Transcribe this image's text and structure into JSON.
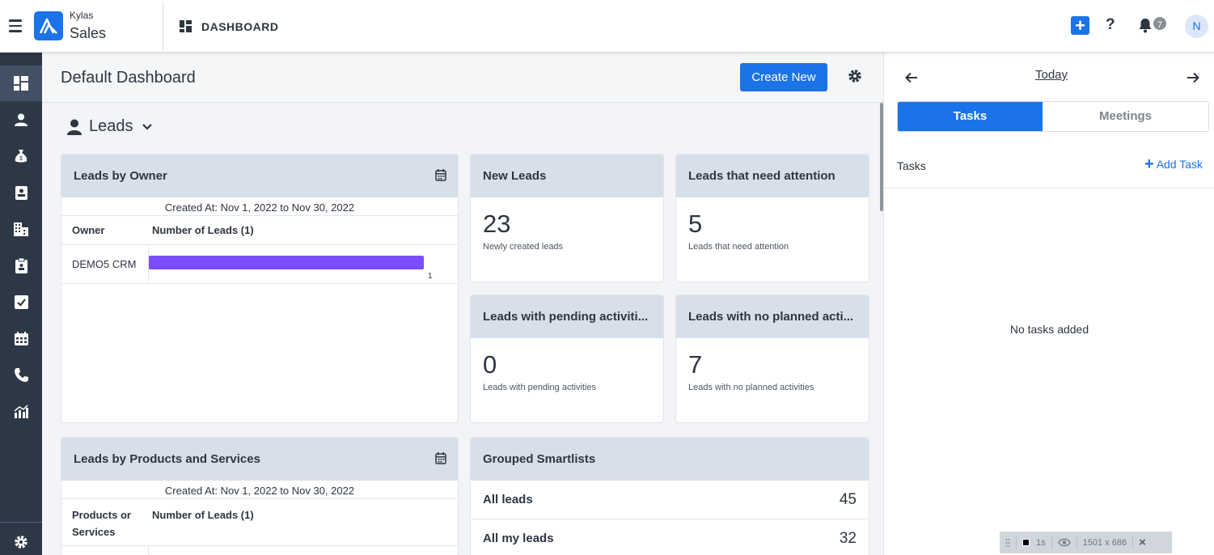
{
  "topbar": {
    "brand_small": "Kylas",
    "brand_big": "Sales",
    "title": "DASHBOARD",
    "notification_count": "7",
    "avatar_initial": "N",
    "help_label": "?"
  },
  "sidebar": {
    "items": [
      {
        "icon": "dashboard-icon",
        "active": true
      },
      {
        "icon": "user-icon"
      },
      {
        "icon": "money-bag-icon"
      },
      {
        "icon": "contact-card-icon"
      },
      {
        "icon": "building-icon"
      },
      {
        "icon": "clipboard-icon"
      },
      {
        "icon": "checkbox-icon"
      },
      {
        "icon": "calendar-icon"
      },
      {
        "icon": "phone-icon"
      },
      {
        "icon": "reports-icon"
      },
      {
        "icon": "settings-icon"
      }
    ]
  },
  "main": {
    "page_title": "Default Dashboard",
    "create_label": "Create New",
    "section_label": "Leads"
  },
  "cards": {
    "leads_by_owner": {
      "title": "Leads by Owner",
      "created": "Created At: Nov 1, 2022 to Nov 30, 2022",
      "col1": "Owner",
      "col2": "Number of Leads (1)",
      "rows": [
        {
          "owner": "DEMO5 CRM",
          "value": "1",
          "fraction": 1.0
        }
      ]
    },
    "new_leads": {
      "title": "New Leads",
      "value": "23",
      "subtitle": "Newly created leads"
    },
    "attention": {
      "title": "Leads that need attention",
      "value": "5",
      "subtitle": "Leads that need attention"
    },
    "pending": {
      "title": "Leads with pending activiti...",
      "value": "0",
      "subtitle": "Leads with pending activities"
    },
    "no_planned": {
      "title": "Leads with no planned acti...",
      "value": "7",
      "subtitle": "Leads with no planned activities"
    },
    "products": {
      "title": "Leads by Products and Services",
      "created": "Created At: Nov 1, 2022 to Nov 30, 2022",
      "col1_line1": "Products or",
      "col1_line2": "Services",
      "col2": "Number of Leads (1)"
    },
    "smartlists": {
      "title": "Grouped Smartlists",
      "rows": [
        {
          "name": "All leads",
          "count": "45"
        },
        {
          "name": "All my leads",
          "count": "32"
        }
      ]
    }
  },
  "right_panel": {
    "today": "Today",
    "tab_tasks": "Tasks",
    "tab_meetings": "Meetings",
    "tasks_label": "Tasks",
    "add_task": "Add Task",
    "empty": "No tasks added"
  },
  "overlay": {
    "interval": "1s",
    "size": "1501 x 686",
    "close": "×"
  },
  "colors": {
    "accent": "#1a73e8",
    "bar": "#7c4dff",
    "sidebar": "#2d3847",
    "card_header": "#d7e0ea"
  }
}
